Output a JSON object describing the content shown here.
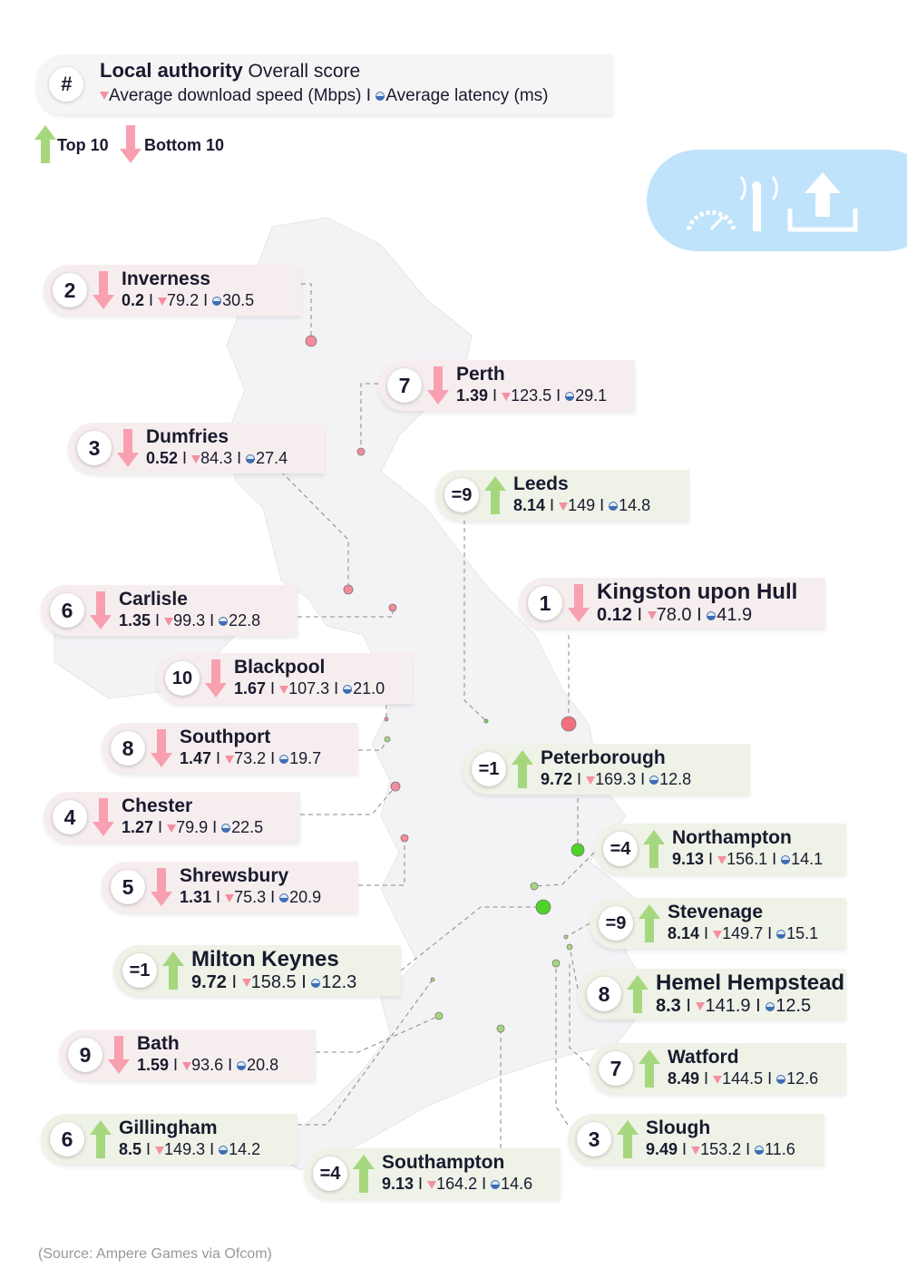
{
  "legend": {
    "hash": "#",
    "title": "Local authority",
    "score_label": "Overall score",
    "speed_label": "Average download speed (Mbps)",
    "sep": "I",
    "latency_label": "Average latency (ms)",
    "top_label": "Top 10",
    "bottom_label": "Bottom 10"
  },
  "colors": {
    "top": "#a6d77e",
    "bottom": "#f8a0b0",
    "top_card": "#eef2e7",
    "bottom_card": "#f6eeee",
    "dot_bottom": "#f58a9a",
    "dot_top": "#7fd35a"
  },
  "cards": [
    {
      "rank": "2",
      "dir": "down",
      "name": "Inverness",
      "score": "0.2",
      "speed": "79.2",
      "latency": "30.5"
    },
    {
      "rank": "7",
      "dir": "down",
      "name": "Perth",
      "score": "1.39",
      "speed": "123.5",
      "latency": "29.1"
    },
    {
      "rank": "3",
      "dir": "down",
      "name": "Dumfries",
      "score": "0.52",
      "speed": "84.3",
      "latency": "27.4"
    },
    {
      "rank": "=9",
      "dir": "up",
      "name": "Leeds",
      "score": "8.14",
      "speed": "149",
      "latency": "14.8"
    },
    {
      "rank": "1",
      "dir": "down",
      "name": "Kingston upon Hull",
      "score": "0.12",
      "speed": "78.0",
      "latency": "41.9"
    },
    {
      "rank": "6",
      "dir": "down",
      "name": "Carlisle",
      "score": "1.35",
      "speed": "99.3",
      "latency": "22.8"
    },
    {
      "rank": "10",
      "dir": "down",
      "name": "Blackpool",
      "score": "1.67",
      "speed": "107.3",
      "latency": "21.0"
    },
    {
      "rank": "8",
      "dir": "down",
      "name": "Southport",
      "score": "1.47",
      "speed": "73.2",
      "latency": "19.7"
    },
    {
      "rank": "=1",
      "dir": "up",
      "name": "Peterborough",
      "score": "9.72",
      "speed": "169.3",
      "latency": "12.8"
    },
    {
      "rank": "4",
      "dir": "down",
      "name": "Chester",
      "score": "1.27",
      "speed": "79.9",
      "latency": "22.5"
    },
    {
      "rank": "=4",
      "dir": "up",
      "name": "Northampton",
      "score": "9.13",
      "speed": "156.1",
      "latency": "14.1"
    },
    {
      "rank": "5",
      "dir": "down",
      "name": "Shrewsbury",
      "score": "1.31",
      "speed": "75.3",
      "latency": "20.9"
    },
    {
      "rank": "=9",
      "dir": "up",
      "name": "Stevenage",
      "score": "8.14",
      "speed": "149.7",
      "latency": "15.1"
    },
    {
      "rank": "=1",
      "dir": "up",
      "name": "Milton Keynes",
      "score": "9.72",
      "speed": "158.5",
      "latency": "12.3"
    },
    {
      "rank": "8",
      "dir": "up",
      "name": "Hemel Hempstead",
      "score": "8.3",
      "speed": "141.9",
      "latency": "12.5"
    },
    {
      "rank": "9",
      "dir": "down",
      "name": "Bath",
      "score": "1.59",
      "speed": "93.6",
      "latency": "20.8"
    },
    {
      "rank": "7",
      "dir": "up",
      "name": "Watford",
      "score": "8.49",
      "speed": "144.5",
      "latency": "12.6"
    },
    {
      "rank": "6",
      "dir": "up",
      "name": "Gillingham",
      "score": "8.5",
      "speed": "149.3",
      "latency": "14.2"
    },
    {
      "rank": "3",
      "dir": "up",
      "name": "Slough",
      "score": "9.49",
      "speed": "153.2",
      "latency": "11.6"
    },
    {
      "rank": "=4",
      "dir": "up",
      "name": "Southampton",
      "score": "9.13",
      "speed": "164.2",
      "latency": "14.6"
    }
  ],
  "source": "(Source: Ampere Games via Ofcom)"
}
